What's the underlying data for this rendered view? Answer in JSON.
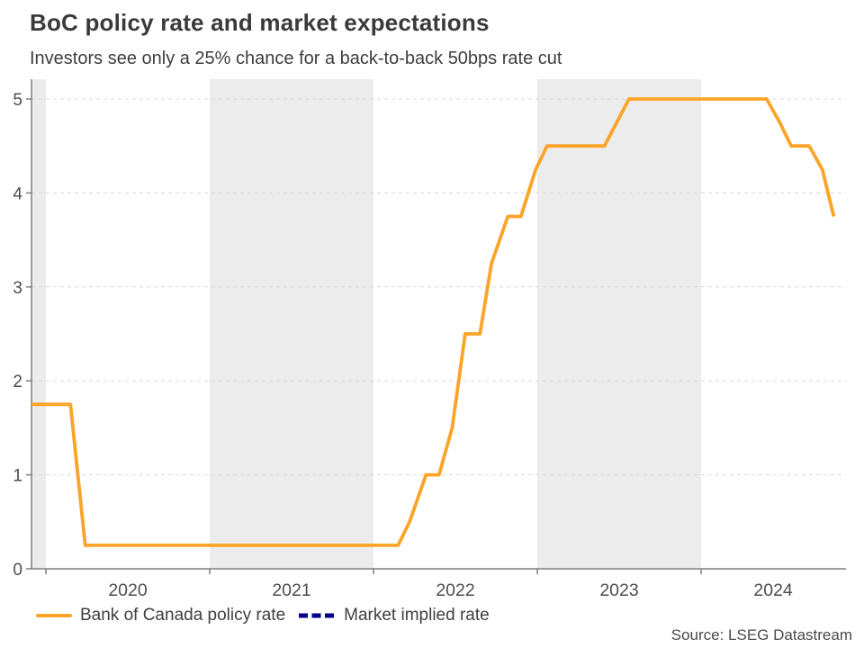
{
  "header": {
    "title": "BoC policy rate and market expectations",
    "subtitle": "Investors see only a 25% chance for a back-to-back 50bps rate cut"
  },
  "source": "Source: LSEG Datastream",
  "colors": {
    "policy_rate_line": "#FBA428",
    "market_implied_line": "#00008B",
    "year_band": "#ECECEC",
    "gridline": "#D9D9D9",
    "axis": "#7F7F7F",
    "tick_label": "#4D4D4D",
    "title_text": "#3A3A3A",
    "background": "#FFFFFF"
  },
  "chart_data": {
    "type": "line",
    "title": "BoC policy rate and market expectations",
    "subtitle": "Investors see only a 25% chance for a back-to-back 50bps rate cut",
    "xlabel": "",
    "ylabel": "",
    "xlim": [
      2019.912,
      2024.885
    ],
    "ylim": [
      0,
      5.2
    ],
    "grid": "horizontal-dashed",
    "legend_position": "bottom-left",
    "y_ticks": [
      0,
      1,
      2,
      3,
      4,
      5
    ],
    "x_boundary_ticks": [
      2020,
      2021,
      2022,
      2023,
      2024
    ],
    "x_tick_labels": [
      {
        "label": "2020",
        "pos": 2020.5
      },
      {
        "label": "2021",
        "pos": 2021.5
      },
      {
        "label": "2022",
        "pos": 2022.5
      },
      {
        "label": "2023",
        "pos": 2023.5
      },
      {
        "label": "2024",
        "pos": 2024.44
      }
    ],
    "shaded_year_bands": [
      [
        2019.912,
        2020.0
      ],
      [
        2021.0,
        2022.0
      ],
      [
        2023.0,
        2024.0
      ]
    ],
    "series": [
      {
        "name": "Bank of Canada policy rate",
        "color": "#FBA428",
        "style": "solid",
        "points": [
          [
            2019.912,
            1.75
          ],
          [
            2020.15,
            1.75
          ],
          [
            2020.24,
            0.25
          ],
          [
            2022.15,
            0.25
          ],
          [
            2022.22,
            0.5
          ],
          [
            2022.32,
            1.0
          ],
          [
            2022.4,
            1.0
          ],
          [
            2022.48,
            1.5
          ],
          [
            2022.56,
            2.5
          ],
          [
            2022.65,
            2.5
          ],
          [
            2022.72,
            3.25
          ],
          [
            2022.82,
            3.75
          ],
          [
            2022.9,
            3.75
          ],
          [
            2022.99,
            4.25
          ],
          [
            2023.06,
            4.5
          ],
          [
            2023.41,
            4.5
          ],
          [
            2023.56,
            5.0
          ],
          [
            2024.4,
            5.0
          ],
          [
            2024.48,
            4.75
          ],
          [
            2024.55,
            4.5
          ],
          [
            2024.66,
            4.5
          ],
          [
            2024.74,
            4.25
          ],
          [
            2024.81,
            3.75
          ]
        ]
      },
      {
        "name": "Market implied rate",
        "color": "#00008B",
        "style": "dashed",
        "points": []
      }
    ]
  }
}
